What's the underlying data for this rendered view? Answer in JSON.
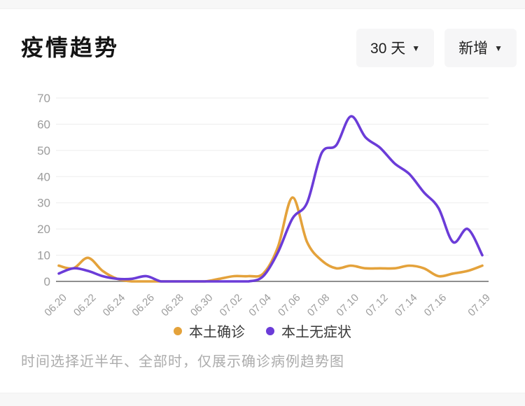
{
  "header": {
    "title": "疫情趋势",
    "range_dropdown": {
      "label": "30 天",
      "caret": "▼"
    },
    "type_dropdown": {
      "label": "新增",
      "caret": "▼"
    }
  },
  "chart_data": {
    "type": "line",
    "title": "疫情趋势",
    "smooth": true,
    "grid": true,
    "legend_position": "bottom",
    "ylim": [
      0,
      70
    ],
    "y_ticks": [
      0,
      10,
      20,
      30,
      40,
      50,
      60,
      70
    ],
    "x": [
      "06.20",
      "06.21",
      "06.22",
      "06.23",
      "06.24",
      "06.25",
      "06.26",
      "06.27",
      "06.28",
      "06.29",
      "06.30",
      "07.01",
      "07.02",
      "07.03",
      "07.04",
      "07.05",
      "07.06",
      "07.07",
      "07.08",
      "07.09",
      "07.10",
      "07.11",
      "07.12",
      "07.13",
      "07.14",
      "07.15",
      "07.16",
      "07.17",
      "07.18",
      "07.19"
    ],
    "x_label_indices": [
      0,
      2,
      4,
      6,
      8,
      10,
      12,
      14,
      16,
      18,
      20,
      22,
      24,
      26,
      29
    ],
    "series": [
      {
        "name": "本土确诊",
        "color": "#E4A23B",
        "values": [
          6,
          5,
          9,
          4,
          1,
          0,
          0,
          0,
          0,
          0,
          0,
          1,
          2,
          2,
          3,
          13,
          32,
          15,
          8,
          5,
          6,
          5,
          5,
          5,
          6,
          5,
          2,
          3,
          4,
          6
        ]
      },
      {
        "name": "本土无症状",
        "color": "#6B3CD8",
        "values": [
          3,
          5,
          4,
          2,
          1,
          1,
          2,
          0,
          0,
          0,
          0,
          0,
          0,
          0,
          2,
          11,
          24,
          30,
          49,
          52,
          63,
          55,
          51,
          45,
          41,
          34,
          28,
          15,
          20,
          10
        ]
      }
    ]
  },
  "legend": {
    "items": [
      {
        "label": "本土确诊",
        "color": "#E4A23B"
      },
      {
        "label": "本土无症状",
        "color": "#6B3CD8"
      }
    ]
  },
  "footer": {
    "note": "时间选择近半年、全部时，仅展示确诊病例趋势图"
  },
  "colors": {
    "grid_line": "#ededed",
    "axis_line": "#8f8f8f",
    "tick_text": "#9c9c9c"
  }
}
